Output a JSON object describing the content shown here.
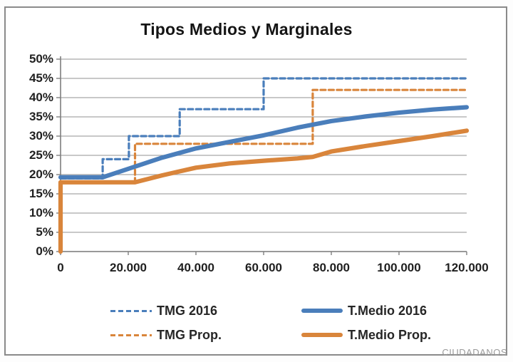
{
  "page": {
    "watermark": "CIUDADANOS"
  },
  "chart_data": {
    "type": "line",
    "title": "Tipos Medios y Marginales",
    "xlabel": "",
    "ylabel": "",
    "grid": true,
    "legend_position": "bottom",
    "x_axis": {
      "min": 0,
      "max": 120000,
      "tick_values": [
        0,
        20000,
        40000,
        60000,
        80000,
        100000,
        120000
      ],
      "tick_labels": [
        "0",
        "20.000",
        "40.000",
        "60.000",
        "80.000",
        "100.000",
        "120.000"
      ]
    },
    "y_axis": {
      "min": 0,
      "max": 50,
      "tick_values": [
        0,
        5,
        10,
        15,
        20,
        25,
        30,
        35,
        40,
        45,
        50
      ],
      "tick_labels": [
        "0%",
        "5%",
        "10%",
        "15%",
        "20%",
        "25%",
        "30%",
        "35%",
        "40%",
        "45%",
        "50%"
      ]
    },
    "colors": {
      "blue": "#4a7ebb",
      "orange": "#d9853b",
      "gridline": "#a6a6a6",
      "axis": "#7f7f7f"
    },
    "series": [
      {
        "name": "TMG 2016",
        "kind": "step-marginal-rate",
        "color": "#4a7ebb",
        "dash": "7 4.5",
        "stroke_width": 3.2,
        "points": [
          [
            0,
            19
          ],
          [
            12450,
            19
          ],
          [
            12450,
            24
          ],
          [
            20200,
            24
          ],
          [
            20200,
            30
          ],
          [
            35200,
            30
          ],
          [
            35200,
            37
          ],
          [
            60000,
            37
          ],
          [
            60000,
            45
          ],
          [
            120000,
            45
          ]
        ]
      },
      {
        "name": "TMG Prop.",
        "kind": "step-marginal-rate",
        "color": "#d9853b",
        "dash": "7 4.5",
        "stroke_width": 3.2,
        "points": [
          [
            0,
            18
          ],
          [
            22000,
            18
          ],
          [
            22000,
            28
          ],
          [
            74500,
            28
          ],
          [
            74500,
            42
          ],
          [
            120000,
            42
          ]
        ]
      },
      {
        "name": "T.Medio 2016",
        "kind": "average-rate-curve",
        "color": "#4a7ebb",
        "dash": null,
        "stroke_width": 6.2,
        "points": [
          [
            0,
            19.3
          ],
          [
            12450,
            19.3
          ],
          [
            20000,
            21.5
          ],
          [
            30000,
            24.4
          ],
          [
            40000,
            26.8
          ],
          [
            50000,
            28.5
          ],
          [
            60000,
            30.2
          ],
          [
            70000,
            32.2
          ],
          [
            80000,
            33.9
          ],
          [
            90000,
            35.1
          ],
          [
            100000,
            36.1
          ],
          [
            110000,
            36.9
          ],
          [
            120000,
            37.5
          ]
        ]
      },
      {
        "name": "T.Medio Prop.",
        "kind": "average-rate-curve",
        "color": "#d9853b",
        "dash": null,
        "stroke_width": 6.2,
        "points": [
          [
            0,
            0
          ],
          [
            0,
            18
          ],
          [
            22000,
            18
          ],
          [
            30000,
            19.8
          ],
          [
            40000,
            21.8
          ],
          [
            50000,
            22.9
          ],
          [
            60000,
            23.6
          ],
          [
            70000,
            24.2
          ],
          [
            74500,
            24.6
          ],
          [
            80000,
            26.0
          ],
          [
            90000,
            27.4
          ],
          [
            100000,
            28.7
          ],
          [
            110000,
            30.0
          ],
          [
            120000,
            31.4
          ]
        ]
      }
    ]
  }
}
